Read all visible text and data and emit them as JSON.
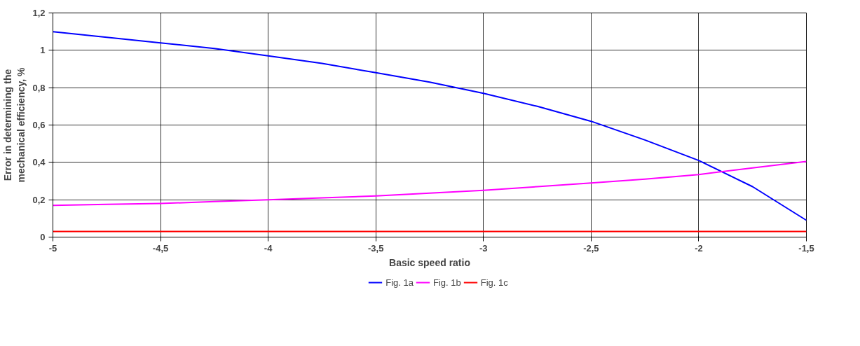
{
  "chart_data": {
    "type": "line",
    "xlabel": "Basic speed ratio",
    "ylabel": "Error in determining the mechanical efficiency, %",
    "xlim": [
      -5,
      -1.5
    ],
    "ylim": [
      0,
      1.2
    ],
    "xticks": [
      -5,
      {
        "value": -4.5,
        "label": "-4,5"
      },
      -4,
      {
        "value": -3.5,
        "label": "-3,5"
      },
      -3,
      {
        "value": -2.5,
        "label": "-2,5"
      },
      -2,
      {
        "value": -1.5,
        "label": "-1,5"
      }
    ],
    "yticks": [
      0,
      {
        "value": 0.2,
        "label": "0,2"
      },
      {
        "value": 0.4,
        "label": "0,4"
      },
      {
        "value": 0.6,
        "label": "0,6"
      },
      {
        "value": 0.8,
        "label": "0,8"
      },
      1,
      {
        "value": 1.2,
        "label": "1,2"
      }
    ],
    "x": [
      -5,
      -4.75,
      -4.5,
      -4.25,
      -4,
      -3.75,
      -3.5,
      -3.25,
      -3,
      -2.75,
      -2.5,
      -2.25,
      -2,
      -1.75,
      -1.5
    ],
    "series": [
      {
        "name": "Fig. 1a",
        "color": "#0000ff",
        "values": [
          1.1,
          1.07,
          1.04,
          1.01,
          0.97,
          0.93,
          0.88,
          0.83,
          0.77,
          0.7,
          0.62,
          0.52,
          0.41,
          0.27,
          0.09
        ]
      },
      {
        "name": "Fig. 1b",
        "color": "#ff00ff",
        "values": [
          0.17,
          0.175,
          0.18,
          0.19,
          0.2,
          0.21,
          0.22,
          0.235,
          0.25,
          0.27,
          0.29,
          0.31,
          0.335,
          0.37,
          0.405
        ]
      },
      {
        "name": "Fig. 1c",
        "color": "#ff0000",
        "values": [
          0.03,
          0.03,
          0.03,
          0.03,
          0.03,
          0.03,
          0.03,
          0.03,
          0.03,
          0.03,
          0.03,
          0.03,
          0.03,
          0.03,
          0.03
        ]
      }
    ],
    "grid": true,
    "legend": "bottom",
    "marker": "none",
    "line_style": "solid"
  }
}
